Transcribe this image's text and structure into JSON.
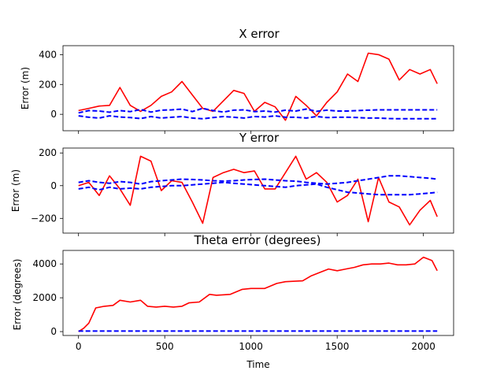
{
  "figure": {
    "xlabel": "Time",
    "x_tick_labels": [
      "0",
      "500",
      "1000",
      "1500",
      "2000"
    ]
  },
  "chart_data": [
    {
      "type": "line",
      "title": "X error",
      "xlabel": "",
      "ylabel": "Error (m)",
      "xlim": [
        -90,
        2175
      ],
      "ylim": [
        -110,
        460
      ],
      "x_ticks": [
        0,
        500,
        1000,
        1500,
        2000
      ],
      "y_ticks": [
        0,
        200,
        400
      ],
      "y_tick_labels": [
        "0",
        "200",
        "400"
      ],
      "grid": false,
      "x": [
        0,
        60,
        120,
        180,
        240,
        300,
        360,
        420,
        480,
        540,
        600,
        660,
        720,
        780,
        840,
        900,
        960,
        1020,
        1080,
        1140,
        1200,
        1260,
        1320,
        1380,
        1440,
        1500,
        1560,
        1620,
        1680,
        1740,
        1800,
        1860,
        1920,
        1980,
        2040,
        2080
      ],
      "series": [
        {
          "color": "#ff0000",
          "style": "solid",
          "values": [
            25,
            40,
            55,
            60,
            180,
            60,
            20,
            60,
            120,
            150,
            220,
            130,
            40,
            20,
            90,
            160,
            140,
            20,
            80,
            50,
            -40,
            120,
            60,
            -10,
            80,
            150,
            270,
            220,
            410,
            400,
            370,
            230,
            300,
            270,
            300,
            205
          ]
        },
        {
          "color": "#0000ff",
          "style": "dashed",
          "values": [
            10,
            25,
            22,
            14,
            25,
            18,
            32,
            15,
            28,
            30,
            35,
            18,
            40,
            25,
            15,
            28,
            30,
            18,
            22,
            15,
            28,
            22,
            35,
            20,
            28,
            22,
            22,
            25,
            28,
            30,
            30,
            30,
            30,
            30,
            30,
            30
          ]
        },
        {
          "color": "#0000ff",
          "style": "dashed",
          "values": [
            -10,
            -20,
            -25,
            -10,
            -18,
            -22,
            -28,
            -15,
            -25,
            -20,
            -15,
            -25,
            -30,
            -22,
            -15,
            -20,
            -25,
            -15,
            -18,
            -10,
            -20,
            -20,
            -25,
            -15,
            -22,
            -20,
            -20,
            -22,
            -25,
            -25,
            -28,
            -30,
            -30,
            -30,
            -30,
            -30
          ]
        }
      ]
    },
    {
      "type": "line",
      "title": "Y error",
      "xlabel": "",
      "ylabel": "Error (m)",
      "xlim": [
        -90,
        2175
      ],
      "ylim": [
        -290,
        230
      ],
      "x_ticks": [
        0,
        500,
        1000,
        1500,
        2000
      ],
      "y_ticks": [
        -200,
        0,
        200
      ],
      "y_tick_labels": [
        "−200",
        "0",
        "200"
      ],
      "grid": false,
      "x": [
        0,
        60,
        120,
        180,
        240,
        300,
        360,
        420,
        480,
        540,
        600,
        660,
        720,
        780,
        840,
        900,
        960,
        1020,
        1080,
        1140,
        1200,
        1260,
        1320,
        1380,
        1440,
        1500,
        1560,
        1620,
        1680,
        1740,
        1800,
        1860,
        1920,
        1980,
        2040,
        2080
      ],
      "series": [
        {
          "color": "#ff0000",
          "style": "solid",
          "values": [
            0,
            20,
            -60,
            60,
            -20,
            -120,
            180,
            150,
            -30,
            30,
            20,
            -100,
            -230,
            50,
            80,
            100,
            80,
            90,
            -20,
            -20,
            80,
            180,
            40,
            80,
            20,
            -100,
            -60,
            40,
            -220,
            50,
            -100,
            -130,
            -240,
            -150,
            -90,
            -190
          ]
        },
        {
          "color": "#0000ff",
          "style": "dashed",
          "values": [
            20,
            30,
            20,
            15,
            25,
            20,
            10,
            25,
            30,
            35,
            40,
            38,
            35,
            30,
            28,
            30,
            35,
            38,
            40,
            35,
            30,
            28,
            20,
            15,
            10,
            15,
            20,
            30,
            40,
            50,
            60,
            60,
            55,
            50,
            45,
            40
          ]
        },
        {
          "color": "#0000ff",
          "style": "dashed",
          "values": [
            -20,
            -10,
            -25,
            -10,
            -20,
            -15,
            -20,
            -10,
            -5,
            0,
            0,
            5,
            10,
            15,
            20,
            15,
            10,
            5,
            0,
            -5,
            -10,
            0,
            5,
            10,
            -10,
            -25,
            -40,
            -45,
            -50,
            -55,
            -55,
            -55,
            -55,
            -50,
            -45,
            -40
          ]
        }
      ]
    },
    {
      "type": "line",
      "title": "Theta error (degrees)",
      "xlabel": "Time",
      "ylabel": "Error (degrees)",
      "xlim": [
        -90,
        2175
      ],
      "ylim": [
        -230,
        4800
      ],
      "x_ticks": [
        0,
        500,
        1000,
        1500,
        2000
      ],
      "y_ticks": [
        0,
        2000,
        4000
      ],
      "y_tick_labels": [
        "0",
        "2000",
        "4000"
      ],
      "grid": false,
      "x": [
        0,
        30,
        60,
        100,
        150,
        200,
        240,
        300,
        360,
        400,
        450,
        500,
        550,
        600,
        640,
        700,
        760,
        800,
        880,
        950,
        1000,
        1080,
        1150,
        1200,
        1300,
        1350,
        1400,
        1450,
        1500,
        1550,
        1600,
        1650,
        1700,
        1750,
        1800,
        1850,
        1900,
        1950,
        2000,
        2050,
        2080
      ],
      "series": [
        {
          "color": "#ff0000",
          "style": "solid",
          "values": [
            0,
            200,
            500,
            1400,
            1500,
            1550,
            1850,
            1750,
            1850,
            1500,
            1450,
            1500,
            1450,
            1500,
            1700,
            1750,
            2200,
            2150,
            2200,
            2500,
            2550,
            2550,
            2850,
            2950,
            3000,
            3300,
            3500,
            3700,
            3600,
            3700,
            3800,
            3950,
            4000,
            4000,
            4050,
            3950,
            3950,
            4000,
            4400,
            4200,
            3600
          ]
        },
        {
          "color": "#0000ff",
          "style": "dashed",
          "values": [
            30,
            30,
            30,
            30,
            30,
            30,
            30,
            30,
            30,
            30,
            30,
            30,
            30,
            30,
            30,
            30,
            30,
            30,
            30,
            30,
            30,
            30,
            30,
            30,
            30,
            30,
            30,
            30,
            30,
            30,
            30,
            30,
            30,
            30,
            30,
            30,
            30,
            30,
            30,
            30,
            30
          ]
        }
      ]
    }
  ]
}
